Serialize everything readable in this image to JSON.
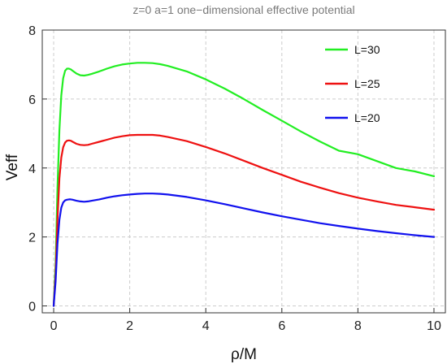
{
  "chart_data": {
    "type": "line",
    "title": "z=0 a=1 one−dimensional effective potential",
    "xlabel": "ρ/M",
    "ylabel": "Veff",
    "xlim": [
      -0.3,
      10.3
    ],
    "ylim": [
      -0.2,
      8
    ],
    "xticks": [
      0,
      2,
      4,
      6,
      8,
      10
    ],
    "yticks": [
      0,
      2,
      4,
      6,
      8
    ],
    "grid": "dashed",
    "legend_position": "top-right",
    "series": [
      {
        "name": "L=30",
        "color": "#22ee22",
        "x": [
          0,
          0.05,
          0.1,
          0.15,
          0.2,
          0.25,
          0.3,
          0.35,
          0.4,
          0.45,
          0.5,
          0.6,
          0.7,
          0.8,
          0.9,
          1.0,
          1.2,
          1.4,
          1.6,
          1.8,
          2.0,
          2.2,
          2.4,
          2.6,
          2.8,
          3.0,
          3.5,
          4.0,
          4.5,
          5.0,
          5.5,
          6.0,
          6.5,
          7.0,
          7.5,
          8.0,
          8.5,
          9.0,
          9.5,
          10.0
        ],
        "y": [
          0,
          1.2,
          3.4,
          5.1,
          6.1,
          6.6,
          6.82,
          6.88,
          6.88,
          6.86,
          6.82,
          6.74,
          6.69,
          6.68,
          6.7,
          6.73,
          6.8,
          6.88,
          6.95,
          7.0,
          7.03,
          7.05,
          7.05,
          7.04,
          7.01,
          6.96,
          6.8,
          6.57,
          6.3,
          6.0,
          5.68,
          5.37,
          5.06,
          4.77,
          4.5,
          4.4,
          4.2,
          4.0,
          3.9,
          3.76
        ]
      },
      {
        "name": "L=25",
        "color": "#ee1111",
        "x": [
          0,
          0.05,
          0.1,
          0.15,
          0.2,
          0.25,
          0.3,
          0.35,
          0.4,
          0.45,
          0.5,
          0.6,
          0.7,
          0.8,
          0.9,
          1.0,
          1.2,
          1.4,
          1.6,
          1.8,
          2.0,
          2.2,
          2.4,
          2.6,
          2.8,
          3.0,
          3.5,
          4.0,
          4.5,
          5.0,
          5.5,
          6.0,
          6.5,
          7.0,
          7.5,
          8.0,
          8.5,
          9.0,
          9.5,
          10.0
        ],
        "y": [
          0,
          0.9,
          2.5,
          3.7,
          4.3,
          4.6,
          4.74,
          4.79,
          4.8,
          4.79,
          4.76,
          4.7,
          4.67,
          4.66,
          4.67,
          4.7,
          4.76,
          4.82,
          4.88,
          4.92,
          4.95,
          4.96,
          4.96,
          4.96,
          4.94,
          4.9,
          4.78,
          4.61,
          4.42,
          4.21,
          4.0,
          3.8,
          3.6,
          3.43,
          3.27,
          3.14,
          3.03,
          2.93,
          2.86,
          2.79
        ]
      },
      {
        "name": "L=20",
        "color": "#1111ee",
        "x": [
          0,
          0.05,
          0.1,
          0.15,
          0.2,
          0.25,
          0.3,
          0.35,
          0.4,
          0.45,
          0.5,
          0.6,
          0.7,
          0.8,
          0.9,
          1.0,
          1.2,
          1.4,
          1.6,
          1.8,
          2.0,
          2.2,
          2.4,
          2.6,
          2.8,
          3.0,
          3.5,
          4.0,
          4.5,
          5.0,
          5.5,
          6.0,
          6.5,
          7.0,
          7.5,
          8.0,
          8.5,
          9.0,
          9.5,
          10.0
        ],
        "y": [
          0,
          0.7,
          1.8,
          2.5,
          2.85,
          3.0,
          3.06,
          3.08,
          3.09,
          3.09,
          3.08,
          3.05,
          3.03,
          3.02,
          3.03,
          3.05,
          3.09,
          3.14,
          3.18,
          3.21,
          3.23,
          3.25,
          3.26,
          3.26,
          3.25,
          3.23,
          3.16,
          3.06,
          2.95,
          2.83,
          2.71,
          2.6,
          2.5,
          2.4,
          2.32,
          2.24,
          2.17,
          2.11,
          2.05,
          2.0
        ]
      }
    ]
  }
}
